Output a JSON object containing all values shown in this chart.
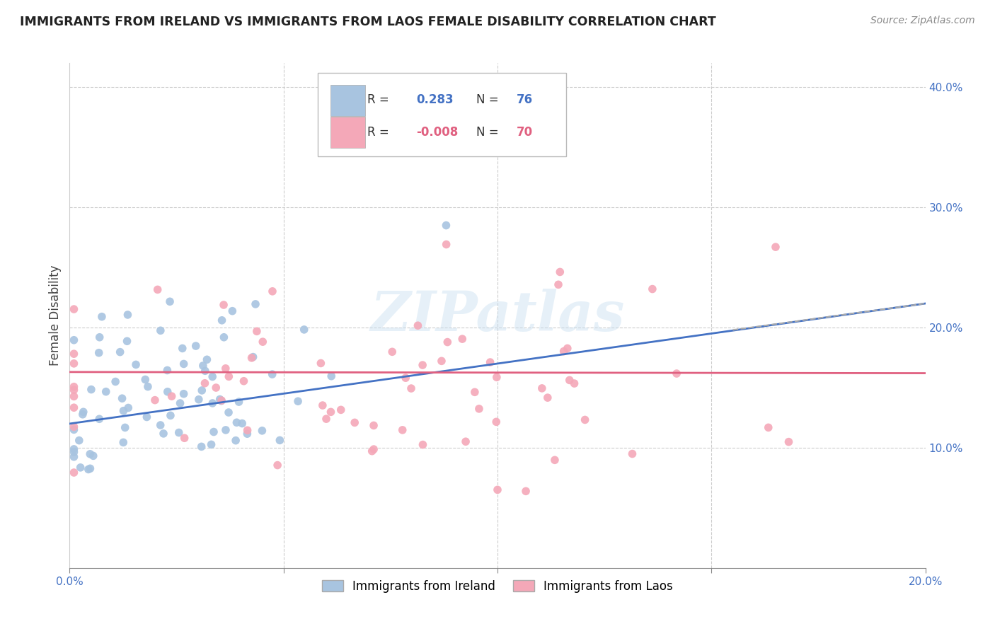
{
  "title": "IMMIGRANTS FROM IRELAND VS IMMIGRANTS FROM LAOS FEMALE DISABILITY CORRELATION CHART",
  "source": "Source: ZipAtlas.com",
  "ylabel": "Female Disability",
  "xlim": [
    0.0,
    0.2
  ],
  "ylim": [
    0.0,
    0.42
  ],
  "x_tick_positions": [
    0.0,
    0.05,
    0.1,
    0.15,
    0.2
  ],
  "x_tick_labels": [
    "0.0%",
    "",
    "",
    "",
    "20.0%"
  ],
  "y_tick_positions": [
    0.0,
    0.1,
    0.2,
    0.3,
    0.4
  ],
  "y_tick_labels": [
    "",
    "10.0%",
    "20.0%",
    "30.0%",
    "40.0%"
  ],
  "ireland_color": "#a8c4e0",
  "laos_color": "#f4a8b8",
  "ireland_line_color": "#4472c4",
  "laos_line_color": "#e06080",
  "ireland_R": 0.283,
  "ireland_N": 76,
  "laos_R": -0.008,
  "laos_N": 70,
  "watermark": "ZIPatlas",
  "legend_ireland": "Immigrants from Ireland",
  "legend_laos": "Immigrants from Laos",
  "tick_color": "#4472c4",
  "grid_color": "#cccccc",
  "title_color": "#222222",
  "source_color": "#888888",
  "ylabel_color": "#444444"
}
